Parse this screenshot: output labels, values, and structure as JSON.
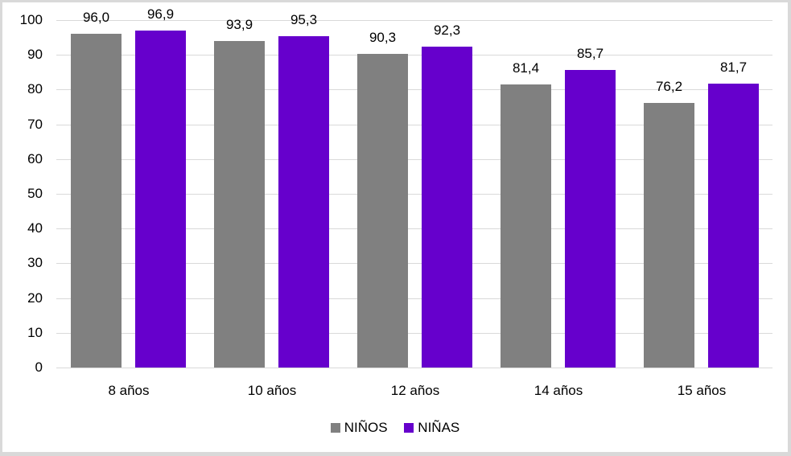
{
  "chart_data": {
    "type": "bar",
    "title": "",
    "xlabel": "",
    "ylabel": "",
    "ylim": [
      0,
      100
    ],
    "yticks": [
      0,
      10,
      20,
      30,
      40,
      50,
      60,
      70,
      80,
      90,
      100
    ],
    "grid": true,
    "legend_position": "bottom",
    "categories": [
      "8 años",
      "10 años",
      "12 años",
      "14 años",
      "15 años"
    ],
    "series": [
      {
        "name": "NIÑOS",
        "color": "#808080",
        "values": [
          96.0,
          93.9,
          90.3,
          81.4,
          76.2
        ],
        "labels": [
          "96,0",
          "93,9",
          "90,3",
          "81,4",
          "76,2"
        ]
      },
      {
        "name": "NIÑAS",
        "color": "#6600cc",
        "values": [
          96.9,
          95.3,
          92.3,
          85.7,
          81.7
        ],
        "labels": [
          "96,9",
          "95,3",
          "92,3",
          "85,7",
          "81,7"
        ]
      }
    ]
  }
}
